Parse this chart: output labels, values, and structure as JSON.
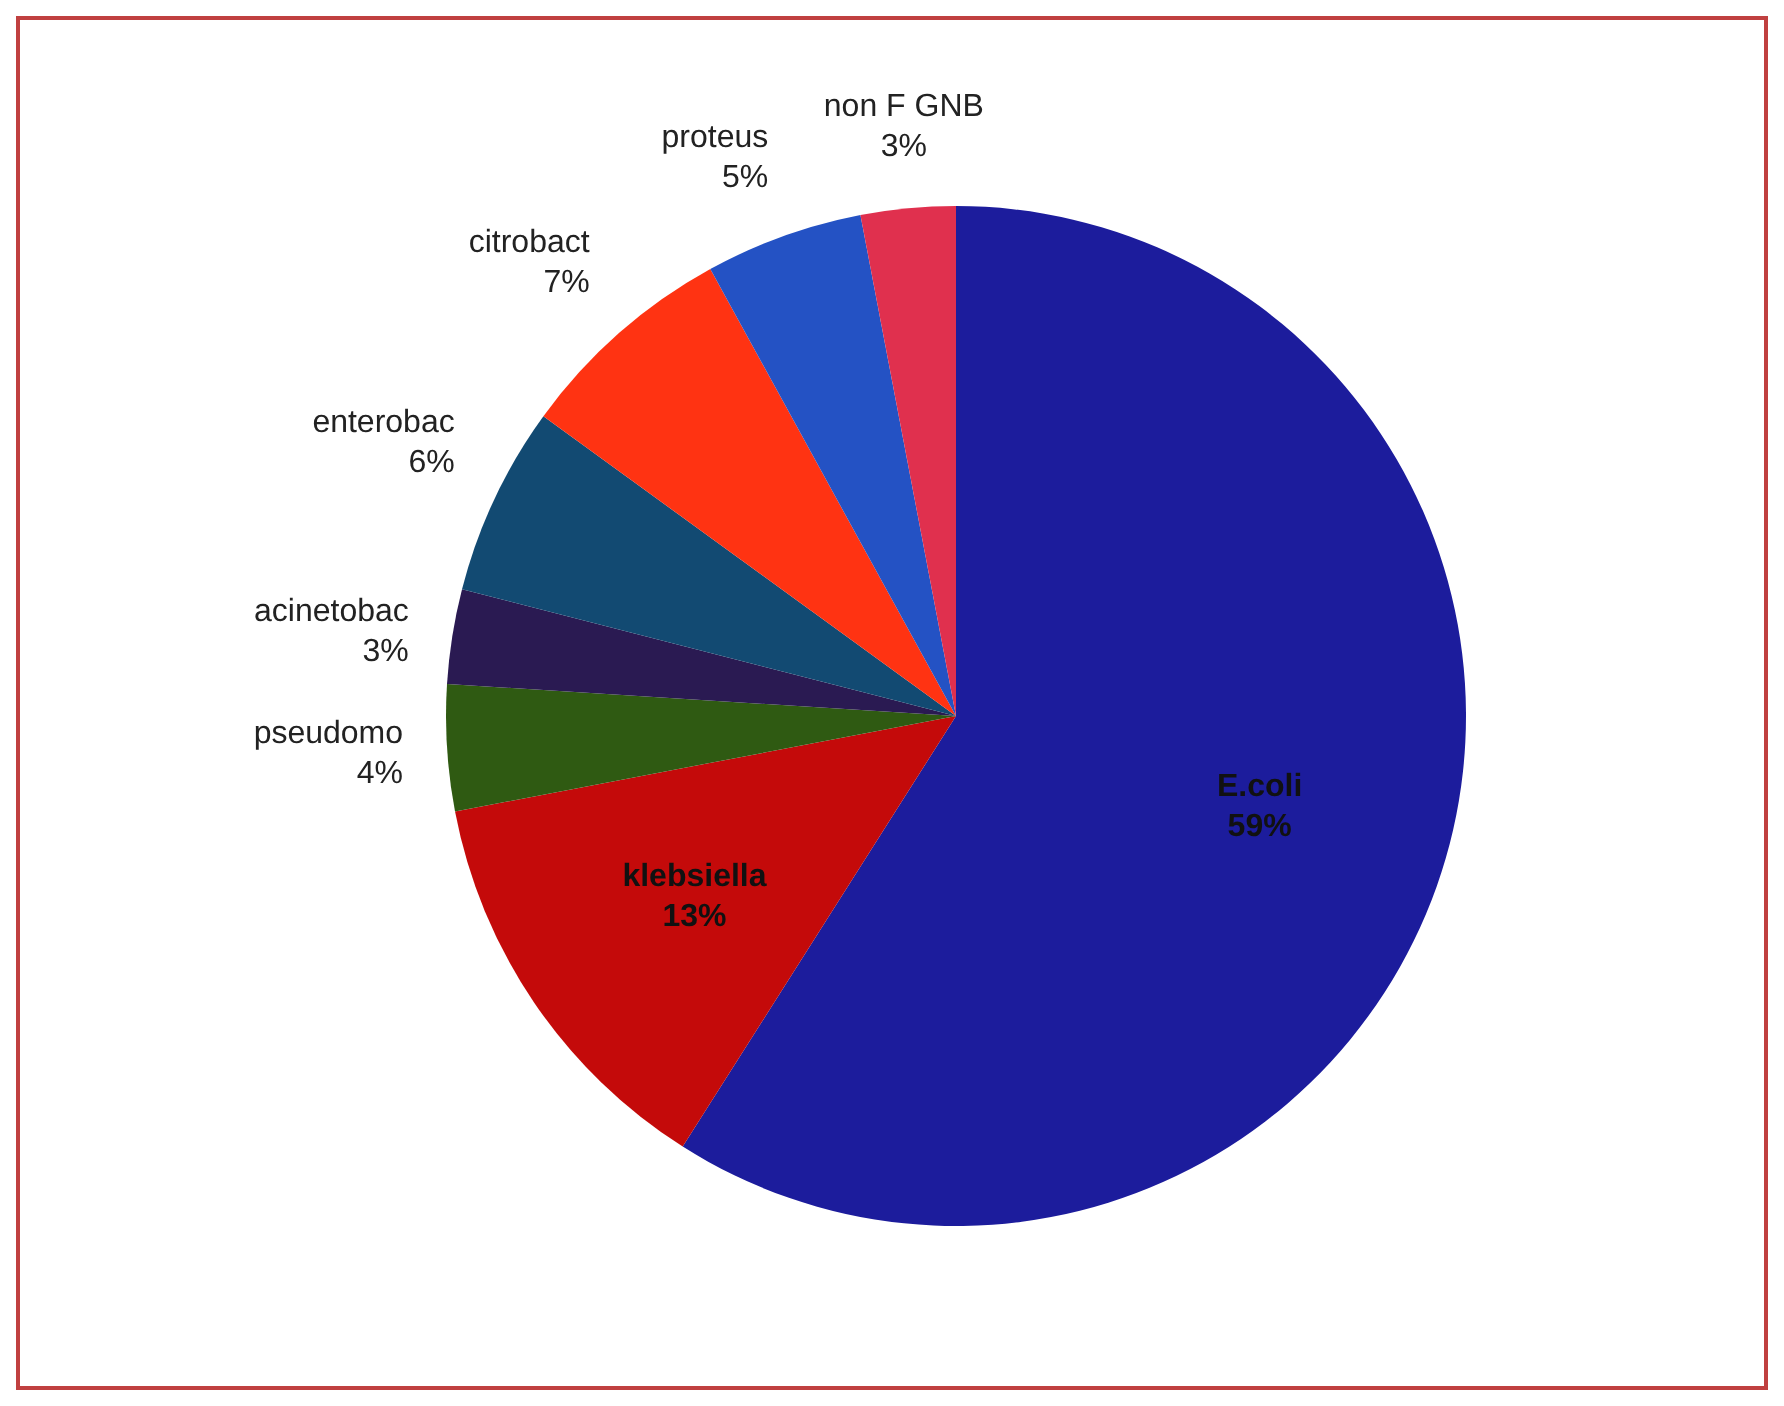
{
  "chart_data": {
    "type": "pie",
    "categories": [
      "E.coli",
      "klebsiella",
      "pseudomo",
      "acinetobac",
      "enterobac",
      "citrobact",
      "proteus",
      "non F GNB"
    ],
    "values": [
      59,
      13,
      4,
      3,
      6,
      7,
      5,
      3
    ],
    "value_labels": [
      "59%",
      "13%",
      "4%",
      "3%",
      "6%",
      "7%",
      "5%",
      "3%"
    ],
    "colors": [
      "#1c1c9c",
      "#c40a0a",
      "#2f5a12",
      "#2a1a52",
      "#124a72",
      "#ff3312",
      "#2452c4",
      "#e0304e"
    ],
    "legend": false
  }
}
